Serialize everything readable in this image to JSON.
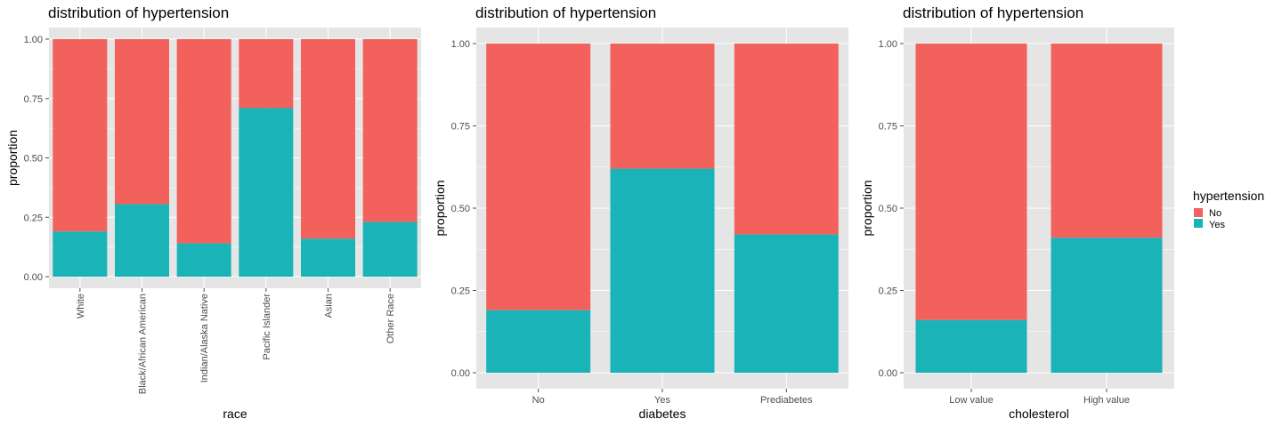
{
  "legend": {
    "title": "hypertension",
    "items": [
      {
        "label": "No",
        "color": "#F2615C"
      },
      {
        "label": "Yes",
        "color": "#1AB4B8"
      }
    ]
  },
  "colors": {
    "panel_bg": "#E5E5E5",
    "grid": "#FFFFFF",
    "tick": "#4D4D4D"
  },
  "chart_data": [
    {
      "type": "bar",
      "stacked": true,
      "title": "distribution of hypertension",
      "xlabel": "race",
      "ylabel": "proportion",
      "ylim": [
        0,
        1
      ],
      "yticks": [
        "0.00",
        "0.25",
        "0.50",
        "0.75",
        "1.00"
      ],
      "x_tick_rotation": -90,
      "categories": [
        "White",
        "Black/African American",
        "Indian/Alaska Native",
        "Pacific Islander",
        "Asian",
        "Other Race"
      ],
      "series": [
        {
          "name": "Yes",
          "values": [
            0.19,
            0.305,
            0.14,
            0.71,
            0.16,
            0.23
          ]
        },
        {
          "name": "No",
          "values": [
            0.81,
            0.695,
            0.86,
            0.29,
            0.84,
            0.77
          ]
        }
      ]
    },
    {
      "type": "bar",
      "stacked": true,
      "title": "distribution of hypertension",
      "xlabel": "diabetes",
      "ylabel": "proportion",
      "ylim": [
        0,
        1
      ],
      "yticks": [
        "0.00",
        "0.25",
        "0.50",
        "0.75",
        "1.00"
      ],
      "x_tick_rotation": 0,
      "categories": [
        "No",
        "Yes",
        "Prediabetes"
      ],
      "series": [
        {
          "name": "Yes",
          "values": [
            0.19,
            0.62,
            0.42
          ]
        },
        {
          "name": "No",
          "values": [
            0.81,
            0.38,
            0.58
          ]
        }
      ]
    },
    {
      "type": "bar",
      "stacked": true,
      "title": "distribution of hypertension",
      "xlabel": "cholesterol",
      "ylabel": "proportion",
      "ylim": [
        0,
        1
      ],
      "yticks": [
        "0.00",
        "0.25",
        "0.50",
        "0.75",
        "1.00"
      ],
      "x_tick_rotation": 0,
      "categories": [
        "Low value",
        "High value"
      ],
      "series": [
        {
          "name": "Yes",
          "values": [
            0.16,
            0.41
          ]
        },
        {
          "name": "No",
          "values": [
            0.84,
            0.59
          ]
        }
      ]
    }
  ]
}
